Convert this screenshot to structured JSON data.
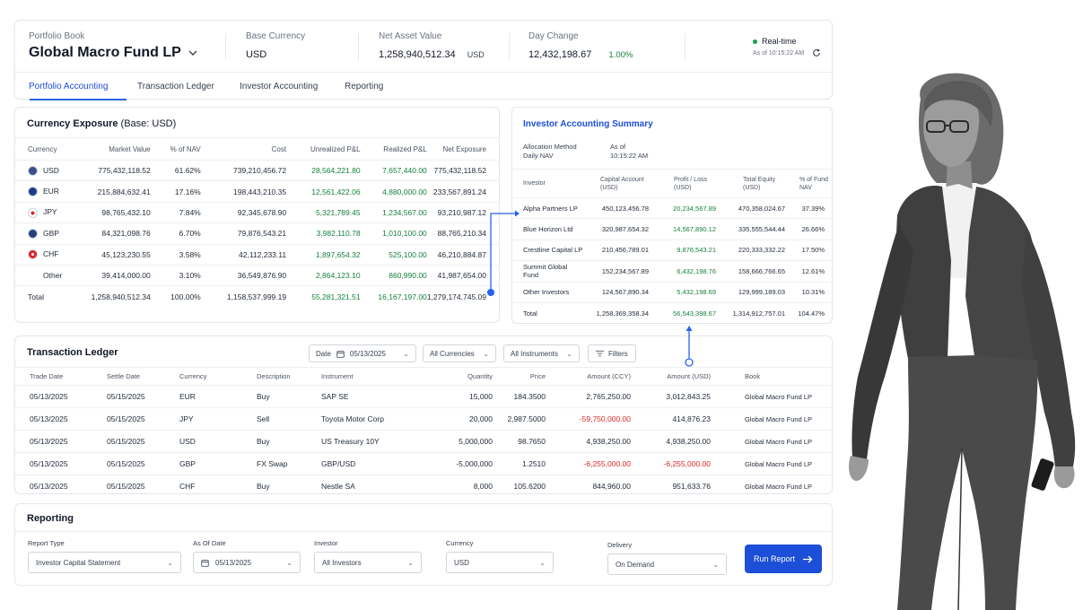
{
  "header": {
    "portfolio_label": "Portfolio Book",
    "portfolio_name": "Global Macro Fund LP",
    "base_currency_label": "Base Currency",
    "base_currency": "USD",
    "nav_label": "Net Asset Value",
    "nav_value": "1,258,940,512.34",
    "nav_ccy": "USD",
    "day_change_label": "Day Change",
    "day_change_value": "12,432,198.67",
    "day_change_pct": "1.00%",
    "realtime_label": "Real-time",
    "as_of": "As of 10:15:22 AM"
  },
  "tabs": [
    {
      "label": "Portfolio Accounting"
    },
    {
      "label": "Transaction Ledger"
    },
    {
      "label": "Investor Accounting"
    },
    {
      "label": "Reporting"
    }
  ],
  "currency": {
    "title": "Currency Exposure",
    "title_suffix": "(Base: USD)",
    "headers": [
      "Currency",
      "Market Value",
      "% of NAV",
      "Cost",
      "Unrealized P&L",
      "Realized P&L",
      "Net Exposure"
    ],
    "rows": [
      {
        "ccy": "USD",
        "mv": "775,432,118.52",
        "pct": "61.62%",
        "cost": "739,210,456.72",
        "upl": "28,564,221.80",
        "rpl": "7,657,440.00",
        "net": "775,432,118.52",
        "flag": "us-flag"
      },
      {
        "ccy": "EUR",
        "mv": "215,884,632.41",
        "pct": "17.16%",
        "cost": "198,443,210.35",
        "upl": "12,561,422.06",
        "rpl": "4,880,000.00",
        "net": "233,567,891.24",
        "flag": "eu-flag"
      },
      {
        "ccy": "JPY",
        "mv": "98,765,432.10",
        "pct": "7.84%",
        "cost": "92,345,678.90",
        "upl": "5,321,789.45",
        "rpl": "1,234,567.00",
        "net": "93,210,987.12",
        "flag": "jp-flag"
      },
      {
        "ccy": "GBP",
        "mv": "84,321,098.76",
        "pct": "6.70%",
        "cost": "79,876,543.21",
        "upl": "3,982,110.78",
        "rpl": "1,010,100.00",
        "net": "88,765,210.34",
        "flag": "gb-flag"
      },
      {
        "ccy": "CHF",
        "mv": "45,123,230.55",
        "pct": "3.58%",
        "cost": "42,112,233.11",
        "upl": "1,897,654.32",
        "rpl": "525,100.00",
        "net": "46,210,884.87",
        "flag": "ch-flag"
      },
      {
        "ccy": "Other",
        "mv": "39,414,000.00",
        "pct": "3.10%",
        "cost": "36,549,876.90",
        "upl": "2,864,123.10",
        "rpl": "860,990.00",
        "net": "41,987,654.00",
        "flag": ""
      }
    ],
    "total": {
      "ccy": "Total",
      "mv": "1,258,940,512.34",
      "pct": "100.00%",
      "cost": "1,158,537,999.19",
      "upl": "55,281,321.51",
      "rpl": "16,167,197.00",
      "net": "1,279,174,745.09"
    }
  },
  "investor": {
    "title": "Investor Accounting Summary",
    "alloc_label": "Allocation Method",
    "alloc_value": "Daily NAV",
    "asof_label": "As of",
    "asof_value": "10:15:22 AM",
    "headers": [
      "Investor",
      "Capital Account (USD)",
      "Profit / Loss (USD)",
      "Total Equity (USD)",
      "% of Fund NAV"
    ],
    "rows": [
      {
        "name": "Alpha Partners LP",
        "cap": "450,123,456.78",
        "pl": "20,234,567.89",
        "eq": "470,358,024.67",
        "pct": "37.39%"
      },
      {
        "name": "Blue Horizon Ltd",
        "cap": "320,987,654.32",
        "pl": "14,567,890.12",
        "eq": "335,555,544.44",
        "pct": "26.66%"
      },
      {
        "name": "Crestline Capital LP",
        "cap": "210,456,789.01",
        "pl": "9,876,543.21",
        "eq": "220,333,332.22",
        "pct": "17.50%"
      },
      {
        "name": "Summit Global Fund",
        "cap": "152,234,567.89",
        "pl": "6,432,198.76",
        "eq": "158,666,766.65",
        "pct": "12.61%"
      },
      {
        "name": "Other Investors",
        "cap": "124,567,890.34",
        "pl": "5,432,198.69",
        "eq": "129,999,189.03",
        "pct": "10.31%"
      }
    ],
    "total": {
      "name": "Total",
      "cap": "1,258,369,358.34",
      "pl": "56,543,398.67",
      "eq": "1,314,912,757.01",
      "pct": "104.47%"
    }
  },
  "ledger": {
    "title": "Transaction Ledger",
    "date_label": "Date",
    "date_value": "05/13/2025",
    "currencies_filter": "All Currencies",
    "instruments_filter": "All Instruments",
    "filters_label": "Filters",
    "headers": [
      "Trade Date",
      "Settle Date",
      "Currency",
      "Description",
      "Instrument",
      "Quantity",
      "Price",
      "Amount (CCY)",
      "Amount (USD)",
      "Book"
    ],
    "rows": [
      {
        "trade": "05/13/2025",
        "settle": "05/15/2025",
        "ccy": "EUR",
        "desc": "Buy",
        "inst": "SAP SE",
        "qty": "15,000",
        "price": "184.3500",
        "amt_ccy": "2,765,250.00",
        "amt_usd": "3,012,843.25",
        "book": "Global Macro Fund LP",
        "neg_ccy": false,
        "neg_usd": false
      },
      {
        "trade": "05/13/2025",
        "settle": "05/15/2025",
        "ccy": "JPY",
        "desc": "Sell",
        "inst": "Toyota Motor Corp",
        "qty": "20,000",
        "price": "2,987.5000",
        "amt_ccy": "-59,750,000.00",
        "amt_usd": "414,876.23",
        "book": "Global Macro Fund LP",
        "neg_ccy": true,
        "neg_usd": false
      },
      {
        "trade": "05/13/2025",
        "settle": "05/15/2025",
        "ccy": "USD",
        "desc": "Buy",
        "inst": "US Treasury 10Y",
        "qty": "5,000,000",
        "price": "98.7650",
        "amt_ccy": "4,938,250.00",
        "amt_usd": "4,938,250.00",
        "book": "Global Macro Fund LP",
        "neg_ccy": false,
        "neg_usd": false
      },
      {
        "trade": "05/13/2025",
        "settle": "05/15/2025",
        "ccy": "GBP",
        "desc": "FX Swap",
        "inst": "GBP/USD",
        "qty": "-5,000,000",
        "price": "1.2510",
        "amt_ccy": "-6,255,000.00",
        "amt_usd": "-6,255,000.00",
        "book": "Global Macro Fund LP",
        "neg_ccy": true,
        "neg_usd": true
      },
      {
        "trade": "05/13/2025",
        "settle": "05/15/2025",
        "ccy": "CHF",
        "desc": "Buy",
        "inst": "Nestle SA",
        "qty": "8,000",
        "price": "105.6200",
        "amt_ccy": "844,960.00",
        "amt_usd": "951,633.76",
        "book": "Global Macro Fund LP",
        "neg_ccy": false,
        "neg_usd": false
      }
    ]
  },
  "reporting": {
    "title": "Reporting",
    "report_type_label": "Report Type",
    "report_type": "Investor Capital Statement",
    "asof_label": "As Of Date",
    "asof_value": "05/13/2025",
    "investor_label": "Investor",
    "investor_value": "All Investors",
    "currency_label": "Currency",
    "currency_value": "USD",
    "delivery_label": "Delivery",
    "delivery_value": "On Demand",
    "run_label": "Run Report"
  },
  "colors": {
    "accent": "#1d4ed8",
    "positive": "#15803d",
    "negative": "#dc2626"
  },
  "icons": [
    "chevron-down-icon",
    "refresh-icon",
    "calendar-icon",
    "filter-icon",
    "arrow-right-icon"
  ]
}
